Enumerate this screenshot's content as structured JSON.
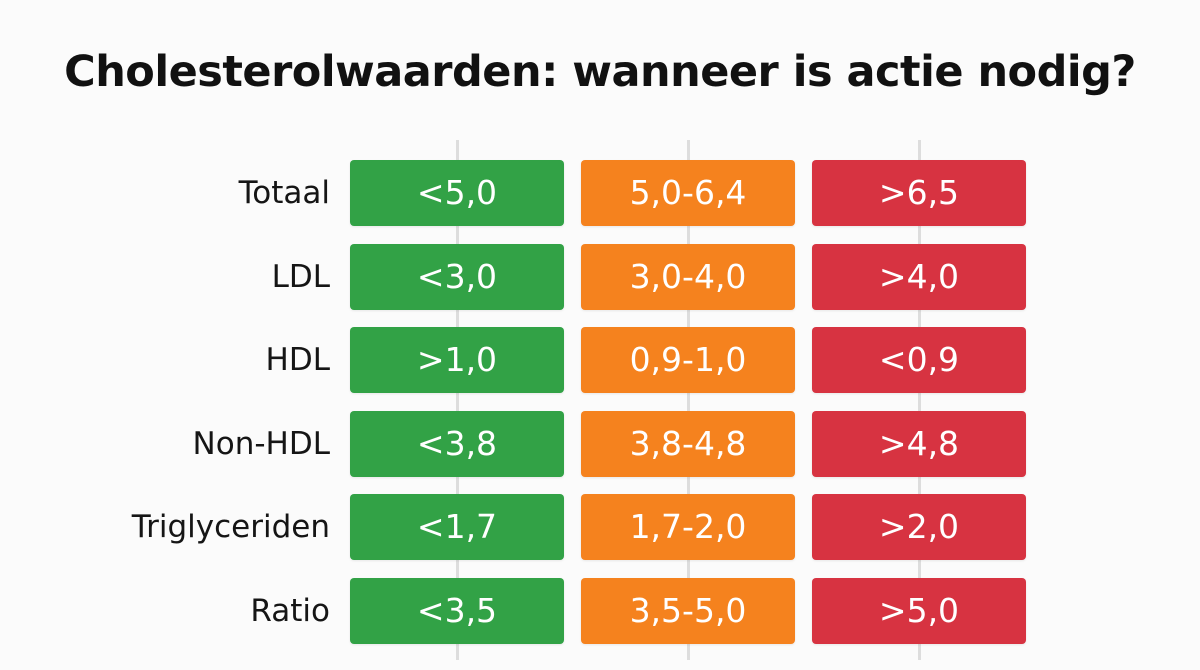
{
  "chart_data": {
    "type": "table",
    "title": "Cholesterolwaarden: wanneer is actie nodig?",
    "columns": [
      {
        "color": "#32a246"
      },
      {
        "color": "#f5821e"
      },
      {
        "color": "#d73341"
      }
    ],
    "rows": [
      {
        "label": "Totaal",
        "values": [
          "<5,0",
          "5,0-6,4",
          ">6,5"
        ]
      },
      {
        "label": "LDL",
        "values": [
          "<3,0",
          "3,0-4,0",
          ">4,0"
        ]
      },
      {
        "label": "HDL",
        "values": [
          ">1,0",
          "0,9-1,0",
          "<0,9"
        ]
      },
      {
        "label": "Non-HDL",
        "values": [
          "<3,8",
          "3,8-4,8",
          ">4,8"
        ]
      },
      {
        "label": "Triglyceriden",
        "values": [
          "<1,7",
          "1,7-2,0",
          ">2,0"
        ]
      },
      {
        "label": "Ratio",
        "values": [
          "<3,5",
          "3,5-5,0",
          ">5,0"
        ]
      }
    ]
  }
}
